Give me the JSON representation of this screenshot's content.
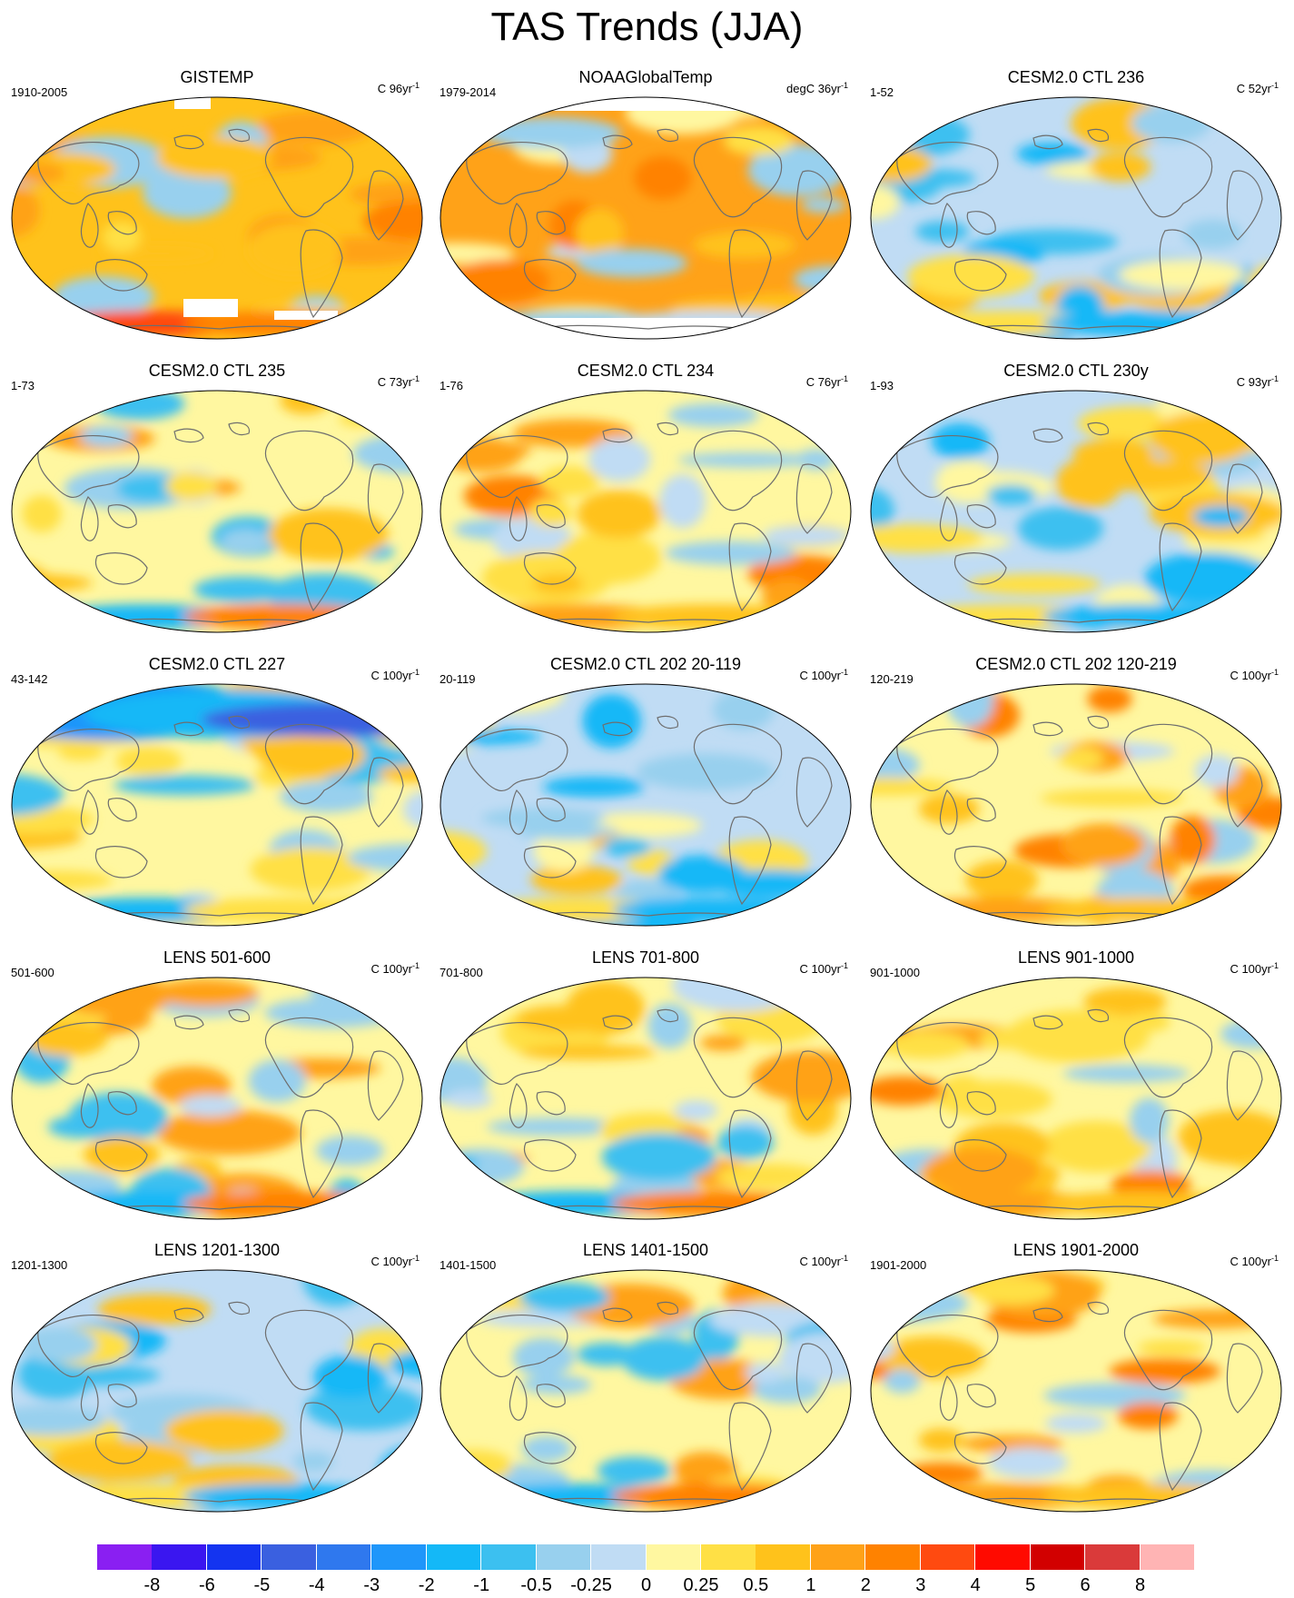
{
  "figure": {
    "title": "TAS Trends (JJA)"
  },
  "panels": [
    {
      "title": "GISTEMP",
      "left": "1910-2005",
      "unit": "C 96yr",
      "exp": "-1",
      "pattern": "warm",
      "note": "missing data near Antarctica and northern polar regions"
    },
    {
      "title": "NOAAGlobalTemp",
      "left": "1979-2014",
      "unit": "degC 36yr",
      "exp": "-1",
      "pattern": "noaa",
      "note": "no data over Antarctica and Arctic"
    },
    {
      "title": "CESM2.0 CTL 236",
      "left": "1-52",
      "unit": "C 52yr",
      "exp": "-1",
      "pattern": "cool"
    },
    {
      "title": "CESM2.0 CTL 235",
      "left": "1-73",
      "unit": "C 73yr",
      "exp": "-1",
      "pattern": "mixed"
    },
    {
      "title": "CESM2.0 CTL 234",
      "left": "1-76",
      "unit": "C 76yr",
      "exp": "-1",
      "pattern": "mixedwarm"
    },
    {
      "title": "CESM2.0 CTL 230y",
      "left": "1-93",
      "unit": "C 93yr",
      "exp": "-1",
      "pattern": "cool"
    },
    {
      "title": "CESM2.0 CTL 227",
      "left": "43-142",
      "unit": "C 100yr",
      "exp": "-1",
      "pattern": "coldnorth"
    },
    {
      "title": "CESM2.0 CTL 202 20-119",
      "left": "20-119",
      "unit": "C 100yr",
      "exp": "-1",
      "pattern": "cool"
    },
    {
      "title": "CESM2.0 CTL 202 120-219",
      "left": "120-219",
      "unit": "C 100yr",
      "exp": "-1",
      "pattern": "mixedwarm"
    },
    {
      "title": "LENS 501-600",
      "left": "501-600",
      "unit": "C 100yr",
      "exp": "-1",
      "pattern": "mixed"
    },
    {
      "title": "LENS 701-800",
      "left": "701-800",
      "unit": "C 100yr",
      "exp": "-1",
      "pattern": "mixed"
    },
    {
      "title": "LENS 901-1000",
      "left": "901-1000",
      "unit": "C 100yr",
      "exp": "-1",
      "pattern": "mixedwarm"
    },
    {
      "title": "LENS 1201-1300",
      "left": "1201-1300",
      "unit": "C 100yr",
      "exp": "-1",
      "pattern": "cool"
    },
    {
      "title": "LENS 1401-1500",
      "left": "1401-1500",
      "unit": "C 100yr",
      "exp": "-1",
      "pattern": "mixed"
    },
    {
      "title": "LENS 1901-2000",
      "left": "1901-2000",
      "unit": "C 100yr",
      "exp": "-1",
      "pattern": "mixedwarm"
    }
  ],
  "colorbar": {
    "colors": [
      "#8a1ff2",
      "#3a16f0",
      "#1434f0",
      "#3a60e0",
      "#2f78ee",
      "#1f96fa",
      "#14b8f7",
      "#3cc0f0",
      "#98d0ee",
      "#c0dcf4",
      "#fff7a0",
      "#ffe045",
      "#ffc21b",
      "#ffa218",
      "#ff8200",
      "#ff4a10",
      "#ff0a00",
      "#d20000",
      "#da3a3a",
      "#ffb4b4"
    ],
    "labels": [
      "-8",
      "-6",
      "-5",
      "-4",
      "-3",
      "-2",
      "-1",
      "-0.5",
      "-0.25",
      "0",
      "0.25",
      "0.5",
      "1",
      "2",
      "3",
      "4",
      "5",
      "6",
      "8"
    ]
  }
}
